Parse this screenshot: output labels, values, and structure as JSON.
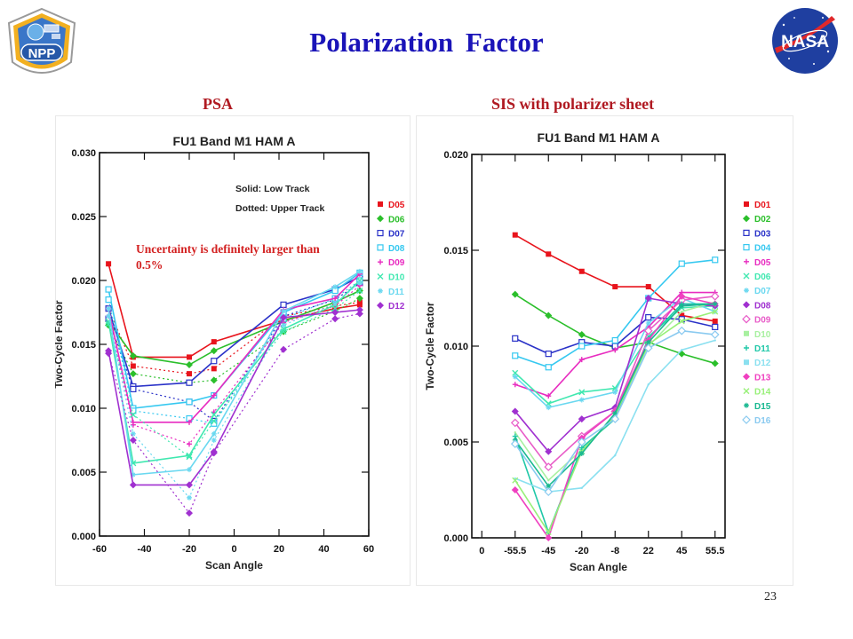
{
  "slide": {
    "title": "Polarization  Factor",
    "page_number": "23",
    "logo_left_text": "NPP",
    "logo_right_text": "NASA"
  },
  "chart_data": [
    {
      "type": "line",
      "label": "PSA",
      "title": "FU1 Band M1 HAM A",
      "xlabel": "Scan Angle",
      "ylabel": "Two-Cycle Factor",
      "xlim": [
        -60,
        60
      ],
      "ylim": [
        0.0,
        0.03
      ],
      "xticks": [
        -60,
        -40,
        -20,
        0,
        20,
        40,
        60
      ],
      "yticks": [
        "0.000",
        "0.005",
        "0.010",
        "0.015",
        "0.020",
        "0.025",
        "0.030"
      ],
      "notes": [
        "Solid: Low Track",
        "Dotted: Upper Track"
      ],
      "annotation": "Uncertainty is definitely larger than 0.5%",
      "legend_position": "right",
      "x": [
        -56,
        -45,
        -20,
        -9,
        22,
        45,
        56
      ],
      "series": [
        {
          "name": "D05",
          "color": "#e8141c",
          "marker": "square-filled",
          "values": [
            0.0213,
            0.014,
            0.014,
            0.0152,
            0.0169,
            0.0178,
            0.0181
          ],
          "values_upper": [
            0.0178,
            0.0133,
            0.0127,
            0.0131,
            0.0172,
            0.018,
            0.0183
          ]
        },
        {
          "name": "D06",
          "color": "#2bbf2b",
          "marker": "diamond-filled",
          "values": [
            0.0168,
            0.0141,
            0.0134,
            0.0145,
            0.0168,
            0.0183,
            0.0192
          ],
          "values_upper": [
            0.0165,
            0.0127,
            0.012,
            0.0122,
            0.016,
            0.0176,
            0.0186
          ]
        },
        {
          "name": "D07",
          "color": "#2a32c8",
          "marker": "square-open",
          "values": [
            0.0178,
            0.0117,
            0.012,
            0.0137,
            0.0181,
            0.0193,
            0.0203
          ],
          "values_upper": [
            0.017,
            0.0115,
            0.0105,
            0.009,
            0.0172,
            0.0185,
            0.0198
          ]
        },
        {
          "name": "D08",
          "color": "#35c8f0",
          "marker": "square-open",
          "values": [
            0.0193,
            0.01,
            0.0105,
            0.011,
            0.0175,
            0.0192,
            0.0206
          ],
          "values_upper": [
            0.0185,
            0.0098,
            0.0092,
            0.0088,
            0.017,
            0.0186,
            0.02
          ]
        },
        {
          "name": "D09",
          "color": "#e82cc0",
          "marker": "plus",
          "values": [
            0.0178,
            0.0089,
            0.0089,
            0.011,
            0.0177,
            0.0186,
            0.0205
          ],
          "values_upper": [
            0.0172,
            0.0087,
            0.0072,
            0.0097,
            0.0167,
            0.018,
            0.0196
          ]
        },
        {
          "name": "D10",
          "color": "#40e8b0",
          "marker": "x",
          "values": [
            0.0168,
            0.0057,
            0.0063,
            0.0095,
            0.0162,
            0.0181,
            0.02
          ],
          "values_upper": [
            0.0166,
            0.0095,
            0.0062,
            0.009,
            0.016,
            0.0178,
            0.0192
          ]
        },
        {
          "name": "D11",
          "color": "#6ad8f0",
          "marker": "asterisk",
          "values": [
            0.0178,
            0.0048,
            0.0052,
            0.008,
            0.0176,
            0.0195,
            0.0207
          ],
          "values_upper": [
            0.0172,
            0.008,
            0.003,
            0.0075,
            0.0165,
            0.0182,
            0.0198
          ]
        },
        {
          "name": "D12",
          "color": "#a030d0",
          "marker": "diamond-filled",
          "values": [
            0.0145,
            0.004,
            0.004,
            0.0066,
            0.0171,
            0.0175,
            0.0177
          ],
          "values_upper": [
            0.0143,
            0.0075,
            0.0018,
            0.0065,
            0.0146,
            0.017,
            0.0174
          ]
        }
      ]
    },
    {
      "type": "line",
      "label": "SIS with polarizer sheet",
      "title": "FU1 Band M1 HAM A",
      "xlabel": "Scan Angle",
      "ylabel": "Two-Cycle Factor",
      "categories": [
        "-55.5",
        "-45",
        "-20",
        "-8",
        "22",
        "45",
        "55.5"
      ],
      "xticks": [
        "0",
        "-55.5",
        "-45",
        "-20",
        "-8",
        "22",
        "45",
        "55.5"
      ],
      "ylim": [
        0.0,
        0.02
      ],
      "yticks": [
        "0.000",
        "0.005",
        "0.010",
        "0.015",
        "0.020"
      ],
      "legend_position": "right",
      "series": [
        {
          "name": "D01",
          "color": "#e8141c",
          "marker": "square-filled",
          "values": [
            0.0158,
            0.0148,
            0.0139,
            0.0131,
            0.0131,
            0.0116,
            0.0113
          ]
        },
        {
          "name": "D02",
          "color": "#2bbf2b",
          "marker": "diamond-filled",
          "values": [
            0.0127,
            0.0116,
            0.0106,
            0.0099,
            0.0102,
            0.0096,
            0.0091
          ]
        },
        {
          "name": "D03",
          "color": "#2a32c8",
          "marker": "square-open",
          "values": [
            0.0104,
            0.0096,
            0.0102,
            0.01,
            0.0115,
            0.0114,
            0.011
          ]
        },
        {
          "name": "D04",
          "color": "#35c8f0",
          "marker": "square-open",
          "values": [
            0.0095,
            0.0089,
            0.01,
            0.0103,
            0.0125,
            0.0143,
            0.0145
          ]
        },
        {
          "name": "D05",
          "color": "#e82cc0",
          "marker": "plus",
          "values": [
            0.008,
            0.0074,
            0.0093,
            0.0098,
            0.011,
            0.0128,
            0.0128
          ]
        },
        {
          "name": "D06",
          "color": "#40e8b0",
          "marker": "x",
          "values": [
            0.0086,
            0.007,
            0.0076,
            0.0078,
            0.0105,
            0.012,
            0.0121
          ]
        },
        {
          "name": "D07",
          "color": "#6ad8f0",
          "marker": "asterisk",
          "values": [
            0.0084,
            0.0068,
            0.0072,
            0.0076,
            0.0112,
            0.0125,
            0.0118
          ]
        },
        {
          "name": "D08",
          "color": "#a030d0",
          "marker": "diamond-filled",
          "values": [
            0.0066,
            0.0045,
            0.0062,
            0.0068,
            0.0125,
            0.0122,
            0.0121
          ]
        },
        {
          "name": "D09",
          "color": "#e85cc8",
          "marker": "diamond-open",
          "values": [
            0.006,
            0.0037,
            0.0053,
            0.0066,
            0.0108,
            0.0124,
            0.0126
          ]
        },
        {
          "name": "D10",
          "color": "#a8f0a0",
          "marker": "none",
          "values": [
            0.0055,
            0.003,
            0.0046,
            0.0063,
            0.01,
            0.0118,
            0.0123
          ]
        },
        {
          "name": "D11",
          "color": "#20c8a8",
          "marker": "plus",
          "values": [
            0.0053,
            0.0003,
            0.0047,
            0.0062,
            0.0104,
            0.0122,
            0.0122
          ]
        },
        {
          "name": "D12",
          "color": "#8ae0f0",
          "marker": "none",
          "values": [
            0.0031,
            0.0024,
            0.0026,
            0.0043,
            0.008,
            0.0098,
            0.0103
          ]
        },
        {
          "name": "D13",
          "color": "#f040c0",
          "marker": "diamond-filled",
          "values": [
            0.0025,
            0.0,
            0.0052,
            0.0066,
            0.0103,
            0.0126,
            0.0122
          ]
        },
        {
          "name": "D14",
          "color": "#98f078",
          "marker": "x",
          "values": [
            0.003,
            0.0003,
            0.0045,
            0.0064,
            0.0101,
            0.0113,
            0.0118
          ]
        },
        {
          "name": "D15",
          "color": "#18b890",
          "marker": "asterisk",
          "values": [
            0.0051,
            0.0027,
            0.0044,
            0.0065,
            0.0102,
            0.0121,
            0.0122
          ]
        },
        {
          "name": "D16",
          "color": "#8acaf0",
          "marker": "diamond-open",
          "values": [
            0.0049,
            0.0024,
            0.005,
            0.0062,
            0.0099,
            0.0108,
            0.0106
          ]
        }
      ]
    }
  ]
}
